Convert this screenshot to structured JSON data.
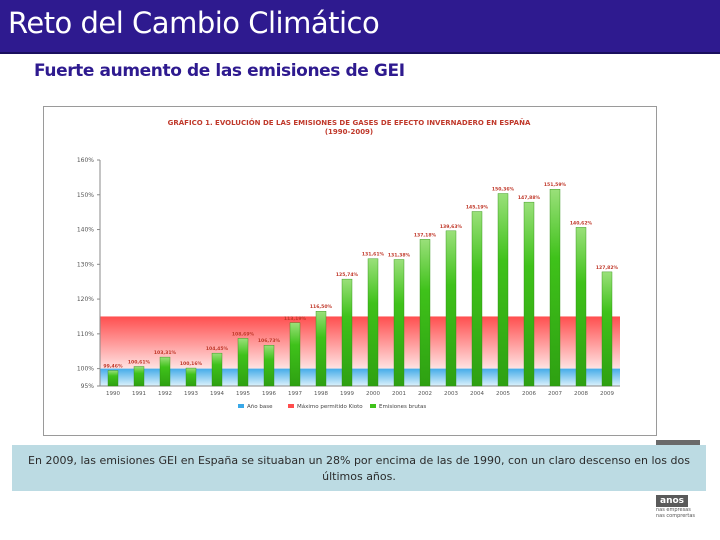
{
  "header": {
    "title": "Reto del Cambio Climático"
  },
  "subtitle": "Fuerte aumento de las emisiones de GEI",
  "figure": {
    "title_line1": "GRÁFICO 1. EVOLUCIÓN DE LAS EMISIONES DE GASES DE EFECTO INVERNADERO EN ESPAÑA",
    "title_line2": "(1990-2009)"
  },
  "chart_data": {
    "type": "bar",
    "categories": [
      "1990",
      "1991",
      "1992",
      "1993",
      "1994",
      "1995",
      "1996",
      "1997",
      "1998",
      "1999",
      "2000",
      "2001",
      "2002",
      "2003",
      "2004",
      "2005",
      "2006",
      "2007",
      "2008",
      "2009"
    ],
    "series": [
      {
        "name": "Emisiones brutas",
        "values": [
          99.46,
          100.61,
          103.31,
          100.16,
          104.45,
          108.69,
          106.73,
          113.19,
          116.5,
          125.74,
          131.61,
          131.38,
          137.18,
          139.63,
          145.19,
          150.36,
          147.88,
          151.59,
          140.62,
          127.82
        ],
        "labels": [
          "99,46%",
          "100,61%",
          "103,31%",
          "100,16%",
          "104,45%",
          "108,69%",
          "106,73%",
          "113,19%",
          "116,50%",
          "125,74%",
          "131,61%",
          "131,38%",
          "137,18%",
          "139,63%",
          "145,19%",
          "150,36%",
          "147,88%",
          "151,59%",
          "140,62%",
          "127,82%"
        ]
      }
    ],
    "reference_bands": [
      {
        "name": "Año base",
        "value": 100
      },
      {
        "name": "Máximo permitido Kioto",
        "value": 115
      }
    ],
    "ylim": [
      95,
      160
    ],
    "yticks": [
      95,
      100,
      110,
      120,
      130,
      140,
      150,
      160
    ],
    "ytick_labels": [
      "95%",
      "100%",
      "110%",
      "120%",
      "130%",
      "140%",
      "150%",
      "160%"
    ],
    "grid": false,
    "legend_position": "bottom",
    "colors": {
      "bar": "#3fc21a",
      "bar_top": "#9ae07a",
      "kyoto_band": "#ff4d4d",
      "base_band": "#39a8e8",
      "label": "#c0392b"
    }
  },
  "legend": [
    "Año base",
    "Máximo permitido Kioto",
    "Emisiones brutas"
  ],
  "caption": "En 2009, las emisiones GEI en España se situaban un 28% por encima de las de 1990, con un claro descenso en los dos últimos años.",
  "logo": {
    "word": "anos",
    "line1": "nas empresas",
    "line2": "nas comprertas"
  }
}
